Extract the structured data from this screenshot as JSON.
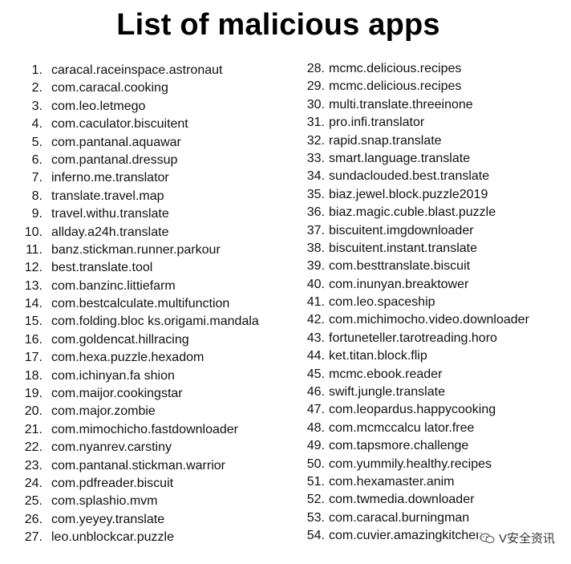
{
  "title": "List of malicious apps",
  "left_column": [
    {
      "num": "1.",
      "name": "caracal.raceinspace.astronaut"
    },
    {
      "num": "2.",
      "name": "com.caracal.cooking"
    },
    {
      "num": "3.",
      "name": "com.leo.letmego"
    },
    {
      "num": "4.",
      "name": "com.caculator.biscuitent"
    },
    {
      "num": "5.",
      "name": "com.pantanal.aquawar"
    },
    {
      "num": "6.",
      "name": "com.pantanal.dressup"
    },
    {
      "num": "7.",
      "name": "inferno.me.translator"
    },
    {
      "num": "8.",
      "name": "translate.travel.map"
    },
    {
      "num": "9.",
      "name": "travel.withu.translate"
    },
    {
      "num": "10.",
      "name": "allday.a24h.translate"
    },
    {
      "num": "11.",
      "name": "banz.stickman.runner.parkour"
    },
    {
      "num": "12.",
      "name": "best.translate.tool"
    },
    {
      "num": "13.",
      "name": "com.banzinc.littiefarm"
    },
    {
      "num": "14.",
      "name": "com.bestcalculate.multifunction"
    },
    {
      "num": "15.",
      "name": "com.folding.bloc ks.origami.mandala"
    },
    {
      "num": "16.",
      "name": "com.goldencat.hillracing"
    },
    {
      "num": "17.",
      "name": "com.hexa.puzzle.hexadom"
    },
    {
      "num": "18.",
      "name": "com.ichinyan.fa shion"
    },
    {
      "num": "19.",
      "name": "com.maijor.cookingstar"
    },
    {
      "num": "20.",
      "name": "com.major.zombie"
    },
    {
      "num": "21.",
      "name": "com.mimochicho.fastdownloader"
    },
    {
      "num": "22.",
      "name": "com.nyanrev.carstiny"
    },
    {
      "num": "23.",
      "name": "com.pantanal.stickman.warrior"
    },
    {
      "num": "24.",
      "name": "com.pdfreader.biscuit"
    },
    {
      "num": "25.",
      "name": "com.splashio.mvm"
    },
    {
      "num": "26.",
      "name": "com.yeyey.translate"
    },
    {
      "num": "27.",
      "name": "leo.unblockcar.puzzle"
    }
  ],
  "right_column": [
    {
      "num": "28.",
      "name": "mcmc.delicious.recipes"
    },
    {
      "num": "29.",
      "name": "mcmc.delicious.recipes"
    },
    {
      "num": "30.",
      "name": "multi.translate.threeinone"
    },
    {
      "num": "31.",
      "name": "pro.infi.translator"
    },
    {
      "num": "32.",
      "name": "rapid.snap.translate"
    },
    {
      "num": "33.",
      "name": "smart.language.translate"
    },
    {
      "num": "34.",
      "name": "sundaclouded.best.translate"
    },
    {
      "num": "35.",
      "name": "biaz.jewel.block.puzzle2019"
    },
    {
      "num": "36.",
      "name": "biaz.magic.cuble.blast.puzzle"
    },
    {
      "num": "37.",
      "name": "biscuitent.imgdownloader"
    },
    {
      "num": "38.",
      "name": "biscuitent.instant.translate"
    },
    {
      "num": "39.",
      "name": "com.besttranslate.biscuit"
    },
    {
      "num": "40.",
      "name": "com.inunyan.breaktower"
    },
    {
      "num": "41.",
      "name": "com.leo.spaceship"
    },
    {
      "num": "42.",
      "name": "com.michimocho.video.downloader"
    },
    {
      "num": "43.",
      "name": "fortuneteller.tarotreading.horo"
    },
    {
      "num": "44.",
      "name": "ket.titan.block.flip"
    },
    {
      "num": "45.",
      "name": "mcmc.ebook.reader"
    },
    {
      "num": "46.",
      "name": "swift.jungle.translate"
    },
    {
      "num": "47.",
      "name": "com.leopardus.happycooking"
    },
    {
      "num": "48.",
      "name": "com.mcmccalcu lator.free"
    },
    {
      "num": "49.",
      "name": "com.tapsmore.challenge"
    },
    {
      "num": "50.",
      "name": "com.yummily.healthy.recipes"
    },
    {
      "num": "51.",
      "name": "com.hexamaster.anim"
    },
    {
      "num": "52.",
      "name": "com.twmedia.downloader"
    },
    {
      "num": "53.",
      "name": "com.caracal.burningman"
    },
    {
      "num": "54.",
      "name": "com.cuvier.amazingkitchen"
    }
  ],
  "watermark": {
    "text": "V安全资讯",
    "icon": "wechat-bubble-icon"
  }
}
